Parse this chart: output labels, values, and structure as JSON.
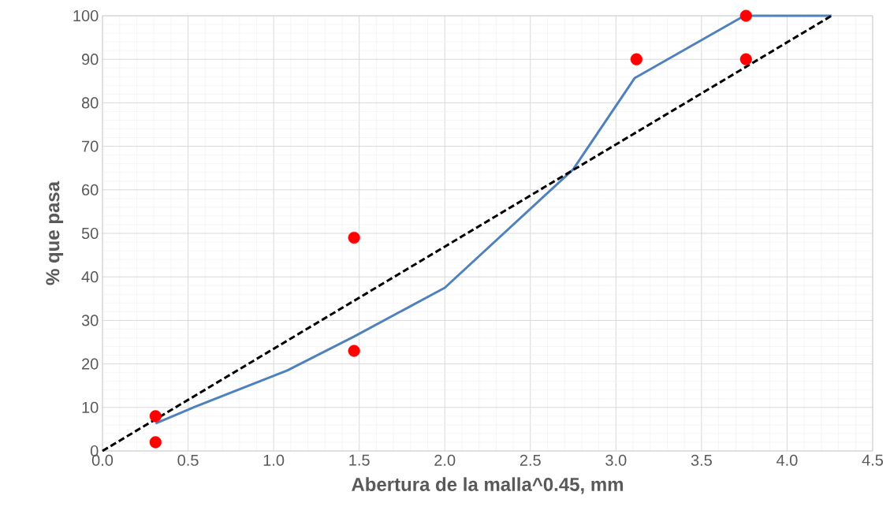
{
  "chart_data": {
    "type": "line",
    "xlabel": "Abertura de la malla^0.45, mm",
    "ylabel": "% que pasa",
    "xlim": [
      0,
      4.5
    ],
    "ylim": [
      0,
      100
    ],
    "xticks": [
      {
        "value": 0,
        "label": "0.0"
      },
      0.5,
      {
        "value": 1,
        "label": "1.0"
      },
      1.5,
      {
        "value": 2,
        "label": "2.0"
      },
      2.5,
      {
        "value": 3,
        "label": "3.0"
      },
      3.5,
      {
        "value": 4,
        "label": "4.0"
      },
      4.5
    ],
    "yticks": [
      0,
      10,
      20,
      30,
      40,
      50,
      60,
      70,
      80,
      90,
      100
    ],
    "grid": true,
    "series": [
      {
        "color": "#4f81bd",
        "marker": "none",
        "line_style": "solid",
        "x": [
          0.31,
          0.55,
          1.08,
          1.47,
          2.0,
          2.75,
          3.11,
          3.75,
          4.26
        ],
        "values": [
          6.3,
          10.3,
          18.5,
          26.3,
          37.5,
          64.7,
          85.7,
          100,
          100
        ]
      },
      {
        "color": "#000000",
        "marker": "none",
        "line_style": "dashed",
        "x": [
          0,
          4.26
        ],
        "values": [
          0,
          100
        ]
      },
      {
        "type": "scatter",
        "color": "#ff0000",
        "marker": "circle",
        "x": [
          0.31,
          0.31,
          1.47,
          1.47,
          3.12,
          3.76,
          3.76
        ],
        "values": [
          8,
          2,
          49,
          23,
          90,
          100,
          90
        ]
      }
    ]
  }
}
